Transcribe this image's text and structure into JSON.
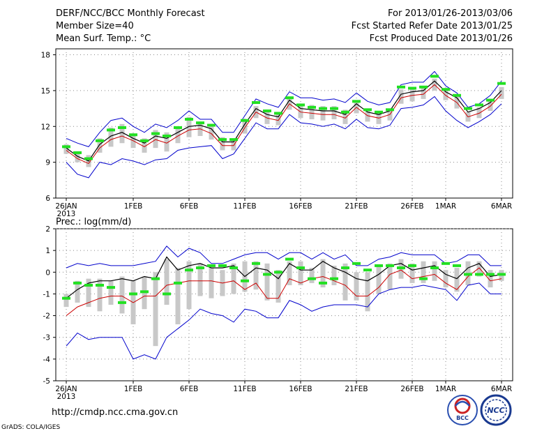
{
  "header": {
    "title": "DERF/NCC/BCC Monthly Forecast",
    "member_size": "Member Size=40",
    "variable": "Mean Surf. Temp.: °C",
    "period": "For 2013/01/26-2013/03/06",
    "started": "Fcst Started Refer Date 2013/01/25",
    "produced": "Fcst Produced Date 2013/01/26"
  },
  "footer": {
    "url": "http://cmdp.ncc.cma.gov.cn",
    "grads": "GrADS: COLA/IGES",
    "logo1_text": "BCC",
    "logo2_text": "NCC"
  },
  "colors": {
    "mean": "#000000",
    "median": "#cc0000",
    "bounds": "#0000cc",
    "box": "#c8c8c8",
    "obs": "#22e022",
    "grid": "#888888"
  },
  "chart_data": [
    {
      "type": "line",
      "title": "Mean Surf. Temp.: °C",
      "x_ticks": [
        "26JAN",
        "1FEB",
        "6FEB",
        "11FEB",
        "16FEB",
        "21FEB",
        "26FEB",
        "1MAR",
        "6MAR"
      ],
      "x_tick_days": [
        0,
        6,
        11,
        16,
        21,
        26,
        31,
        34,
        39
      ],
      "year_label": "2013",
      "y_ticks": [
        6,
        9,
        12,
        15,
        18
      ],
      "ylim": [
        6,
        18.5
      ],
      "grid": true,
      "series": [
        {
          "name": "upper",
          "values": [
            11.0,
            10.6,
            10.3,
            11.5,
            12.5,
            12.7,
            12.0,
            11.5,
            12.2,
            11.9,
            12.5,
            13.3,
            12.6,
            12.6,
            11.5,
            11.5,
            12.9,
            14.3,
            13.9,
            13.6,
            14.9,
            14.4,
            14.4,
            14.2,
            14.3,
            14.0,
            14.8,
            14.1,
            13.8,
            14.0,
            15.5,
            15.7,
            15.7,
            16.6,
            15.4,
            14.8,
            13.6,
            13.9,
            14.6,
            15.8
          ]
        },
        {
          "name": "box_top",
          "values": [
            10.5,
            9.9,
            9.6,
            11.0,
            11.9,
            12.2,
            11.4,
            11.0,
            11.7,
            11.5,
            12.0,
            12.8,
            12.4,
            12.2,
            11.1,
            11.0,
            12.4,
            13.7,
            13.4,
            13.2,
            14.4,
            13.8,
            13.8,
            13.7,
            13.7,
            13.4,
            14.2,
            13.5,
            13.3,
            13.5,
            15.1,
            15.2,
            15.3,
            16.0,
            15.1,
            14.5,
            13.2,
            13.6,
            14.3,
            15.3
          ]
        },
        {
          "name": "mean",
          "values": [
            10.2,
            9.5,
            9.1,
            10.5,
            11.2,
            11.5,
            11.0,
            10.6,
            11.2,
            11.0,
            11.5,
            12.0,
            12.1,
            11.8,
            10.7,
            10.7,
            12.2,
            13.5,
            13.0,
            12.8,
            14.2,
            13.5,
            13.4,
            13.3,
            13.3,
            13.0,
            13.9,
            13.2,
            13.0,
            13.3,
            14.7,
            14.9,
            15.0,
            15.8,
            14.9,
            14.4,
            13.2,
            13.5,
            14.0,
            15.0
          ]
        },
        {
          "name": "median",
          "values": [
            10.0,
            9.3,
            8.9,
            10.2,
            10.9,
            11.2,
            10.8,
            10.3,
            10.9,
            10.6,
            11.2,
            11.7,
            11.8,
            11.4,
            10.4,
            10.4,
            11.9,
            13.2,
            12.7,
            12.5,
            13.9,
            13.2,
            13.1,
            13.0,
            13.0,
            12.7,
            13.6,
            12.9,
            12.7,
            13.0,
            14.4,
            14.6,
            14.7,
            15.5,
            14.6,
            14.0,
            12.8,
            13.1,
            13.7,
            14.7
          ]
        },
        {
          "name": "box_bottom",
          "values": [
            9.7,
            9.0,
            8.6,
            9.8,
            10.3,
            10.6,
            10.2,
            9.8,
            10.2,
            9.9,
            10.6,
            11.1,
            11.2,
            10.9,
            10.0,
            10.0,
            11.4,
            12.7,
            12.2,
            12.1,
            13.4,
            12.7,
            12.6,
            12.5,
            12.6,
            12.2,
            13.1,
            12.4,
            12.2,
            12.5,
            13.9,
            14.1,
            14.3,
            15.0,
            14.2,
            13.5,
            12.4,
            12.7,
            13.3,
            14.3
          ]
        },
        {
          "name": "lower",
          "values": [
            9.0,
            8.0,
            7.7,
            9.0,
            8.8,
            9.3,
            9.1,
            8.8,
            9.2,
            9.3,
            10.0,
            10.2,
            10.3,
            10.4,
            9.3,
            9.7,
            11.0,
            12.3,
            11.8,
            11.8,
            13.0,
            12.3,
            12.2,
            12.0,
            12.2,
            11.8,
            12.6,
            11.9,
            11.8,
            12.1,
            13.5,
            13.6,
            13.8,
            14.5,
            13.3,
            12.5,
            11.9,
            12.4,
            13.0,
            13.9
          ]
        },
        {
          "name": "obs_marker",
          "values": [
            10.3,
            9.8,
            9.3,
            10.8,
            11.7,
            11.9,
            11.3,
            10.8,
            11.4,
            11.2,
            11.9,
            12.6,
            12.3,
            12.1,
            10.9,
            10.9,
            12.5,
            14.0,
            13.3,
            13.1,
            14.4,
            13.8,
            13.6,
            13.5,
            13.5,
            13.2,
            14.1,
            13.4,
            13.2,
            13.4,
            15.3,
            15.2,
            15.3,
            16.2,
            15.1,
            14.6,
            13.5,
            13.8,
            14.2,
            15.6
          ]
        }
      ]
    },
    {
      "type": "line",
      "title": "Prec.: log(mm/d)",
      "x_ticks": [
        "26JAN",
        "1FEB",
        "6FEB",
        "11FEB",
        "16FEB",
        "21FEB",
        "26FEB",
        "1MAR",
        "6MAR"
      ],
      "x_tick_days": [
        0,
        6,
        11,
        16,
        21,
        26,
        31,
        34,
        39
      ],
      "year_label": "2013",
      "y_ticks": [
        -5,
        -4,
        -3,
        -2,
        -1,
        0,
        1,
        2
      ],
      "ylim": [
        -5,
        2
      ],
      "grid": true,
      "series": [
        {
          "name": "upper",
          "values": [
            0.2,
            0.4,
            0.3,
            0.4,
            0.3,
            0.3,
            0.3,
            0.4,
            0.5,
            1.2,
            0.7,
            1.1,
            0.9,
            0.4,
            0.4,
            0.6,
            0.8,
            0.9,
            0.9,
            0.6,
            0.9,
            0.9,
            0.6,
            0.9,
            0.6,
            0.8,
            0.3,
            0.3,
            0.6,
            0.7,
            0.9,
            0.8,
            0.8,
            0.8,
            0.4,
            0.5,
            0.8,
            0.8,
            0.3,
            0.3
          ]
        },
        {
          "name": "box_top",
          "values": [
            -1.0,
            -0.4,
            -0.3,
            -0.3,
            -0.4,
            -0.2,
            -0.4,
            -0.2,
            0.0,
            0.6,
            0.2,
            0.5,
            0.4,
            0.2,
            0.1,
            0.4,
            0.5,
            0.5,
            0.4,
            0.1,
            0.5,
            0.5,
            0.2,
            0.6,
            0.3,
            0.4,
            0.0,
            0.0,
            0.3,
            0.4,
            0.6,
            0.4,
            0.5,
            0.5,
            0.1,
            0.2,
            0.5,
            0.5,
            0.1,
            0.1
          ]
        },
        {
          "name": "mean",
          "values": [
            -1.2,
            -0.8,
            -0.5,
            -0.4,
            -0.4,
            -0.3,
            -0.4,
            -0.2,
            -0.3,
            0.7,
            0.1,
            0.3,
            0.4,
            0.2,
            0.2,
            0.3,
            -0.2,
            0.2,
            0.1,
            -0.3,
            0.4,
            0.1,
            0.1,
            0.5,
            0.2,
            0.0,
            -0.3,
            -0.4,
            -0.1,
            0.3,
            0.4,
            0.1,
            0.2,
            0.3,
            -0.1,
            -0.3,
            0.2,
            0.4,
            -0.2,
            -0.1
          ]
        },
        {
          "name": "median",
          "values": [
            -2.0,
            -1.6,
            -1.4,
            -1.2,
            -1.1,
            -1.1,
            -1.4,
            -1.1,
            -1.1,
            -0.6,
            -0.5,
            -0.4,
            -0.4,
            -0.4,
            -0.5,
            -0.4,
            -0.8,
            -0.5,
            -1.2,
            -1.2,
            -0.3,
            -0.5,
            -0.3,
            -0.2,
            -0.4,
            -0.6,
            -1.1,
            -1.1,
            -0.7,
            -0.1,
            0.1,
            -0.3,
            -0.2,
            -0.1,
            -0.5,
            -0.8,
            -0.2,
            0.2,
            -0.4,
            -0.3
          ]
        },
        {
          "name": "box_bottom",
          "values": [
            -1.6,
            -1.4,
            -1.6,
            -1.8,
            -1.5,
            -1.9,
            -2.4,
            -1.7,
            -3.4,
            -1.5,
            -2.4,
            -1.7,
            -1.1,
            -1.2,
            -1.1,
            -1.0,
            -0.9,
            -0.8,
            -1.3,
            -1.4,
            -0.6,
            -0.6,
            -0.5,
            -0.7,
            -0.6,
            -1.3,
            -1.3,
            -1.8,
            -1.0,
            -0.8,
            -0.3,
            -0.5,
            -0.5,
            -0.4,
            -0.7,
            -0.9,
            -0.6,
            -0.2,
            -0.7,
            -0.4
          ]
        },
        {
          "name": "lower",
          "values": [
            -3.4,
            -2.8,
            -3.1,
            -3.0,
            -3.0,
            -3.0,
            -4.0,
            -3.8,
            -4.0,
            -3.0,
            -2.6,
            -2.2,
            -1.7,
            -1.9,
            -2.0,
            -2.3,
            -1.7,
            -1.8,
            -2.1,
            -2.1,
            -1.3,
            -1.5,
            -1.8,
            -1.6,
            -1.5,
            -1.5,
            -1.5,
            -1.6,
            -1.0,
            -0.8,
            -0.7,
            -0.7,
            -0.6,
            -0.7,
            -0.8,
            -1.3,
            -0.6,
            -0.5,
            -1.0,
            -1.0
          ]
        },
        {
          "name": "obs_marker",
          "values": [
            -1.2,
            -0.5,
            -0.6,
            -0.6,
            -0.7,
            -1.4,
            -1.0,
            -0.9,
            -0.3,
            -1.0,
            -0.5,
            0.1,
            0.2,
            0.3,
            0.3,
            0.2,
            -0.4,
            0.4,
            -0.1,
            0.0,
            0.6,
            0.2,
            -0.3,
            -0.5,
            -0.3,
            0.2,
            0.4,
            0.1,
            0.3,
            0.3,
            0.2,
            0.3,
            -0.3,
            0.2,
            0.4,
            0.3,
            -0.1,
            -0.1,
            -0.1,
            -0.1
          ]
        }
      ]
    }
  ]
}
